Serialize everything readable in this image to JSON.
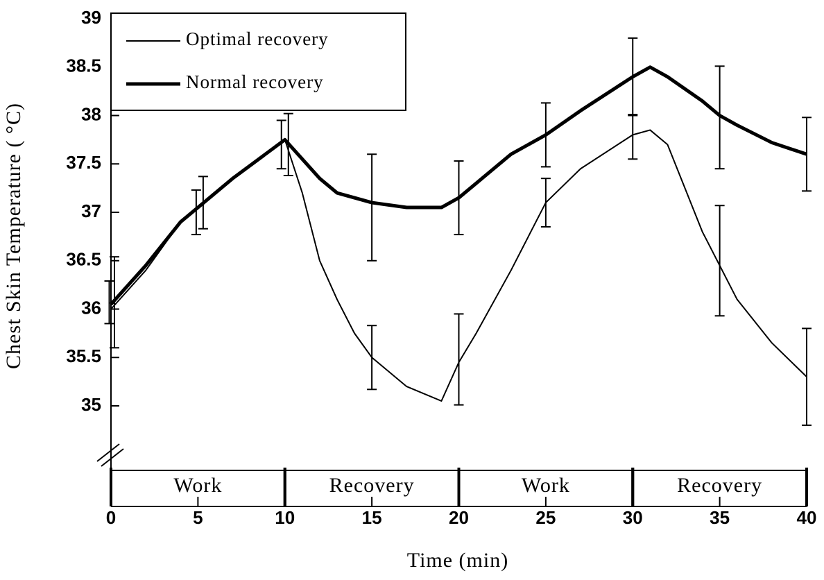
{
  "chart_data": {
    "type": "line",
    "x_label": "Time (min)",
    "y_label": "Chest Skin Temperature ( °C)",
    "xlim": [
      0,
      40
    ],
    "xticks": [
      0,
      5,
      10,
      15,
      20,
      25,
      30,
      35,
      40
    ],
    "ylim": [
      35,
      39
    ],
    "yticks": [
      35,
      35.5,
      36,
      36.5,
      37,
      37.5,
      38,
      38.5,
      39
    ],
    "x": [
      0,
      2,
      4,
      5,
      7,
      10,
      11,
      12,
      13,
      14,
      15,
      17,
      19,
      20,
      21,
      23,
      25,
      27,
      30,
      31,
      32,
      34,
      35,
      36,
      38,
      40
    ],
    "series": [
      {
        "name": "Optimal recovery",
        "color": "#000000",
        "line_width": 2,
        "values": [
          36.0,
          36.4,
          36.9,
          37.05,
          37.35,
          37.75,
          37.2,
          36.5,
          36.1,
          35.75,
          35.5,
          35.2,
          35.05,
          35.45,
          35.75,
          36.4,
          37.1,
          37.45,
          37.8,
          37.85,
          37.7,
          36.8,
          36.45,
          36.1,
          35.65,
          35.3
        ],
        "err_x": [
          -0.1,
          4.9,
          9.8,
          15,
          20,
          25,
          30,
          35,
          40
        ],
        "err_center": [
          36.07,
          37.0,
          37.7,
          35.5,
          35.48,
          37.1,
          37.78,
          36.5,
          35.3
        ],
        "errors": [
          0.22,
          0.23,
          0.25,
          0.33,
          0.47,
          0.25,
          0.23,
          0.57,
          0.5
        ]
      },
      {
        "name": "Normal recovery",
        "color": "#000000",
        "line_width": 5,
        "values": [
          36.05,
          36.45,
          36.9,
          37.05,
          37.35,
          37.75,
          37.55,
          37.35,
          37.2,
          37.15,
          37.1,
          37.05,
          37.05,
          37.15,
          37.3,
          37.6,
          37.8,
          38.05,
          38.4,
          38.5,
          38.4,
          38.15,
          38.0,
          37.9,
          37.72,
          37.6
        ],
        "err_x": [
          0.2,
          5.3,
          10.2,
          15,
          20,
          25,
          30,
          35,
          40
        ],
        "err_center": [
          36.07,
          37.1,
          37.7,
          37.05,
          37.15,
          37.8,
          38.4,
          37.98,
          37.6
        ],
        "errors": [
          0.47,
          0.27,
          0.32,
          0.55,
          0.38,
          0.33,
          0.4,
          0.53,
          0.38
        ]
      }
    ],
    "phases": [
      {
        "label": "Work",
        "start": 0,
        "end": 10
      },
      {
        "label": "Recovery",
        "start": 10,
        "end": 20
      },
      {
        "label": "Work",
        "start": 20,
        "end": 30
      },
      {
        "label": "Recovery",
        "start": 30,
        "end": 40
      }
    ],
    "legend": "upper left"
  }
}
